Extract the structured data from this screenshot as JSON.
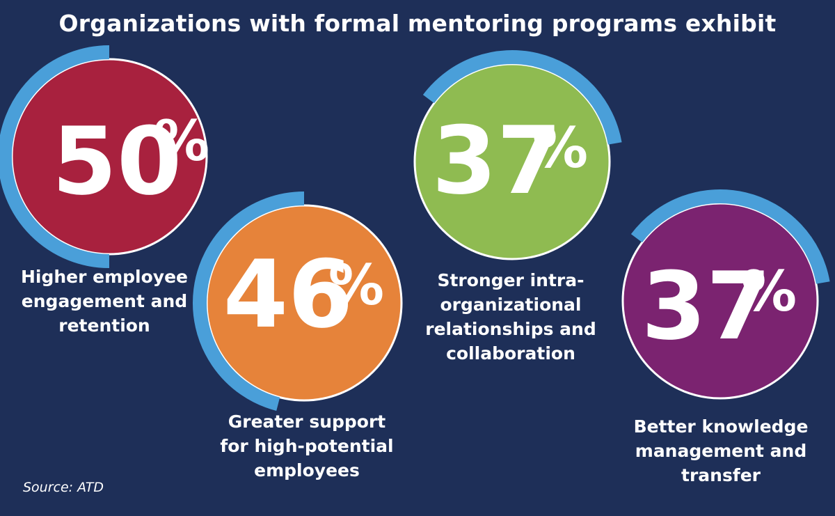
{
  "title": "Organizations with formal mentoring programs exhibit",
  "source": "Source: ATD",
  "colors": {
    "background": "#1e2f58",
    "ring": "#4a9fd9",
    "stroke": "#ffffff",
    "text": "#ffffff"
  },
  "chart_data": {
    "type": "stat-circles",
    "title": "Organizations with formal mentoring programs exhibit",
    "unit": "%",
    "items": [
      {
        "value": 50,
        "label": "Higher employee engagement and retention",
        "label_lines": [
          "Higher employee",
          "engagement and",
          "retention"
        ],
        "color": "#a8213e"
      },
      {
        "value": 46,
        "label": "Greater support for high-potential employees",
        "label_lines": [
          "Greater support",
          "for high-potential",
          "employees"
        ],
        "color": "#e6833a"
      },
      {
        "value": 37,
        "label": "Stronger intra-organizational relationships and collaboration",
        "label_lines": [
          "Stronger intra-",
          "organizational",
          "relationships and",
          "collaboration"
        ],
        "color": "#8fbb51"
      },
      {
        "value": 37,
        "label": "Better knowledge management and transfer",
        "label_lines": [
          "Better knowledge",
          "management and",
          "transfer"
        ],
        "color": "#7b2370"
      }
    ]
  }
}
